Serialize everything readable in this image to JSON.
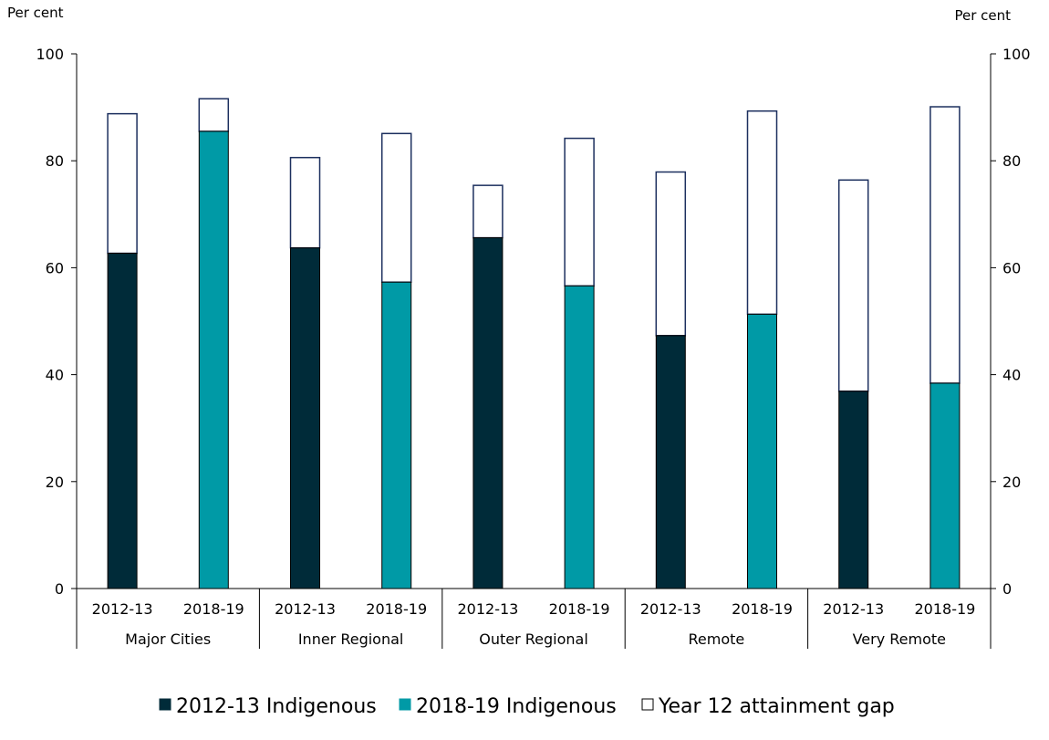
{
  "chart_data": {
    "type": "bar",
    "stacked": true,
    "left_axis_unit": "Per cent",
    "right_axis_unit": "Per cent",
    "ylim": [
      0,
      100
    ],
    "yticks": [
      0,
      20,
      40,
      60,
      80,
      100
    ],
    "grid": false,
    "groups": [
      "Major Cities",
      "Inner Regional",
      "Outer Regional",
      "Remote",
      "Very Remote"
    ],
    "periods": [
      "2012-13",
      "2018-19"
    ],
    "series": [
      {
        "name": "2012-13 Indigenous",
        "color": "#002b39",
        "values": [
          62.7,
          63.7,
          65.6,
          47.3,
          36.9
        ]
      },
      {
        "name": "2018-19 Indigenous",
        "color": "#009aa6",
        "values": [
          85.5,
          57.3,
          56.6,
          51.3,
          38.4
        ]
      },
      {
        "name": "Year 12 attainment gap",
        "color": "#ffffff",
        "border_color": "#1c2f5e",
        "values_2012_13": [
          26.1,
          16.9,
          9.8,
          30.6,
          39.5
        ],
        "values_2018_19": [
          6.1,
          27.8,
          27.6,
          38.0,
          51.7
        ]
      }
    ],
    "totals_2012_13": [
      88.8,
      80.6,
      75.4,
      77.9,
      76.4
    ],
    "totals_2018_19": [
      91.6,
      85.1,
      84.2,
      89.3,
      90.1
    ],
    "legend_position": "bottom"
  }
}
